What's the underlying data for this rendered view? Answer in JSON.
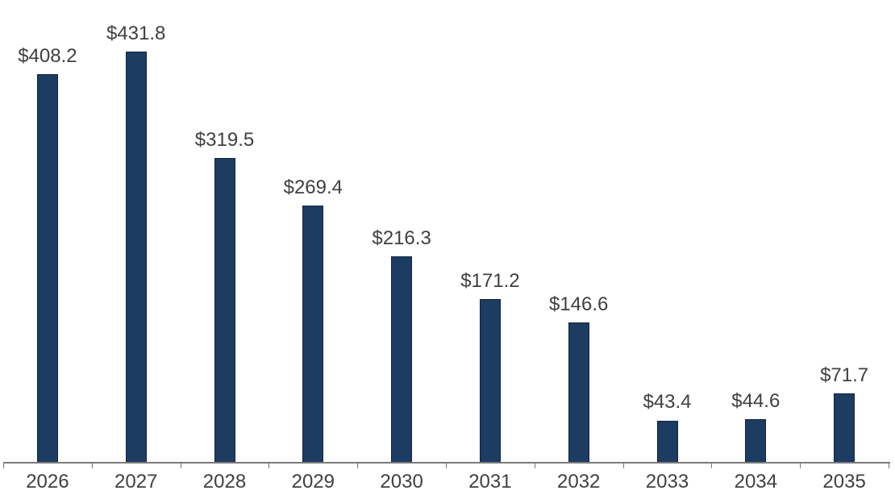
{
  "chart_data": {
    "type": "bar",
    "title": "",
    "xlabel": "",
    "ylabel": "",
    "categories": [
      "2026",
      "2027",
      "2028",
      "2029",
      "2030",
      "2031",
      "2032",
      "2033",
      "2034",
      "2035"
    ],
    "values": [
      408.2,
      431.8,
      319.5,
      269.4,
      216.3,
      171.2,
      146.6,
      43.4,
      44.6,
      71.7
    ],
    "data_labels": [
      "$408.2",
      "$431.8",
      "$319.5",
      "$269.4",
      "$216.3",
      "$171.2",
      "$146.6",
      "$43.4",
      "$44.6",
      "$71.7"
    ],
    "series_name": "",
    "ylim": [
      0,
      470
    ],
    "grid": false,
    "legend": false,
    "y_axis_visible": false,
    "colors": {
      "bar_fill": "#1d3c62",
      "bar_border": "#0e2540",
      "label_text": "#404040",
      "axis_line": "#7a7a7a",
      "tick": "#7a7a7a",
      "background": "#ffffff"
    }
  }
}
